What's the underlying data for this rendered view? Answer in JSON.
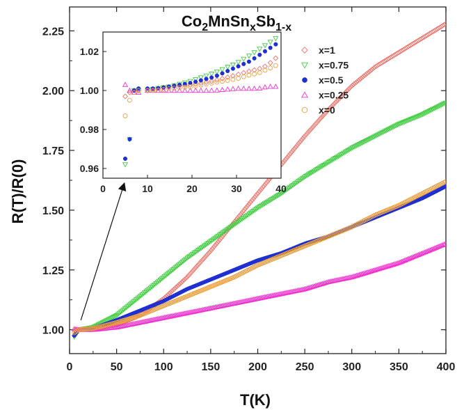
{
  "chart_data": {
    "type": "scatter",
    "title": {
      "base": "Co",
      "s1": "2",
      "mid": "MnSn",
      "s2": "x",
      "mid2": "Sb",
      "s3": "1-x"
    },
    "xlabel": "T(K)",
    "ylabel": "R(T)/R(0)",
    "xlim": [
      0,
      400
    ],
    "ylim": [
      0.9,
      2.35
    ],
    "xticks": [
      "0",
      "50",
      "100",
      "150",
      "200",
      "250",
      "300",
      "350",
      "400"
    ],
    "yticks": [
      "1.00",
      "1.25",
      "1.50",
      "1.75",
      "2.00",
      "2.25"
    ],
    "legend_position": "top-right",
    "grid": false,
    "series": [
      {
        "name": "x=1",
        "marker": "diamond-open",
        "color": "#e8736a",
        "points": [
          [
            5,
            1.0
          ],
          [
            10,
            1.0
          ],
          [
            25,
            1.003
          ],
          [
            50,
            1.02
          ],
          [
            75,
            1.06
          ],
          [
            100,
            1.13
          ],
          [
            125,
            1.22
          ],
          [
            150,
            1.33
          ],
          [
            175,
            1.45
          ],
          [
            200,
            1.57
          ],
          [
            225,
            1.69
          ],
          [
            250,
            1.81
          ],
          [
            275,
            1.92
          ],
          [
            300,
            2.02
          ],
          [
            325,
            2.1
          ],
          [
            350,
            2.16
          ],
          [
            375,
            2.22
          ],
          [
            400,
            2.28
          ]
        ]
      },
      {
        "name": "x=0.75",
        "marker": "triangle-down-open",
        "color": "#44cc44",
        "points": [
          [
            5,
            0.97
          ],
          [
            10,
            1.0
          ],
          [
            25,
            1.01
          ],
          [
            50,
            1.06
          ],
          [
            75,
            1.14
          ],
          [
            100,
            1.22
          ],
          [
            125,
            1.3
          ],
          [
            150,
            1.37
          ],
          [
            175,
            1.44
          ],
          [
            200,
            1.51
          ],
          [
            225,
            1.57
          ],
          [
            250,
            1.64
          ],
          [
            275,
            1.7
          ],
          [
            300,
            1.76
          ],
          [
            325,
            1.81
          ],
          [
            350,
            1.86
          ],
          [
            375,
            1.9
          ],
          [
            400,
            1.95
          ]
        ]
      },
      {
        "name": "x=0.5",
        "marker": "circle-filled",
        "color": "#1f2fd0",
        "points": [
          [
            5,
            0.975
          ],
          [
            10,
            1.0
          ],
          [
            25,
            1.005
          ],
          [
            50,
            1.04
          ],
          [
            75,
            1.08
          ],
          [
            100,
            1.12
          ],
          [
            125,
            1.17
          ],
          [
            150,
            1.21
          ],
          [
            175,
            1.25
          ],
          [
            200,
            1.29
          ],
          [
            225,
            1.32
          ],
          [
            250,
            1.36
          ],
          [
            275,
            1.39
          ],
          [
            300,
            1.43
          ],
          [
            325,
            1.47
          ],
          [
            350,
            1.51
          ],
          [
            375,
            1.55
          ],
          [
            400,
            1.6
          ]
        ]
      },
      {
        "name": "x=0.25",
        "marker": "triangle-up-open",
        "color": "#ee33cc",
        "points": [
          [
            5,
            1.003
          ],
          [
            10,
            1.0
          ],
          [
            25,
            1.0
          ],
          [
            50,
            1.01
          ],
          [
            75,
            1.03
          ],
          [
            100,
            1.05
          ],
          [
            125,
            1.07
          ],
          [
            150,
            1.09
          ],
          [
            175,
            1.11
          ],
          [
            200,
            1.13
          ],
          [
            225,
            1.15
          ],
          [
            250,
            1.17
          ],
          [
            275,
            1.2
          ],
          [
            300,
            1.22
          ],
          [
            325,
            1.25
          ],
          [
            350,
            1.28
          ],
          [
            375,
            1.32
          ],
          [
            400,
            1.36
          ]
        ]
      },
      {
        "name": "x=0",
        "marker": "circle-open",
        "color": "#e8a040",
        "points": [
          [
            5,
            0.987
          ],
          [
            10,
            1.0
          ],
          [
            25,
            1.005
          ],
          [
            50,
            1.03
          ],
          [
            75,
            1.06
          ],
          [
            100,
            1.1
          ],
          [
            125,
            1.14
          ],
          [
            150,
            1.18
          ],
          [
            175,
            1.22
          ],
          [
            200,
            1.27
          ],
          [
            225,
            1.31
          ],
          [
            250,
            1.35
          ],
          [
            275,
            1.39
          ],
          [
            300,
            1.43
          ],
          [
            325,
            1.48
          ],
          [
            350,
            1.52
          ],
          [
            375,
            1.57
          ],
          [
            400,
            1.62
          ]
        ]
      }
    ],
    "inset": {
      "xlim": [
        0,
        40
      ],
      "ylim": [
        0.955,
        1.03
      ],
      "xticks": [
        "0",
        "10",
        "20",
        "30",
        "40"
      ],
      "yticks": [
        "0.96",
        "0.98",
        "1.00",
        "1.02"
      ],
      "series": [
        {
          "name": "x=1",
          "points": [
            [
              5,
              0.997
            ],
            [
              6,
              0.999
            ],
            [
              7,
              1.0
            ],
            [
              8,
              1.0
            ],
            [
              10,
              1.0
            ],
            [
              12,
              1.001
            ],
            [
              15,
              1.002
            ],
            [
              20,
              1.003
            ],
            [
              25,
              1.005
            ],
            [
              30,
              1.008
            ],
            [
              33,
              1.01
            ],
            [
              35,
              1.011
            ],
            [
              37,
              1.013
            ],
            [
              39,
              1.017
            ],
            [
              40,
              1.02
            ]
          ]
        },
        {
          "name": "x=0.75",
          "points": [
            [
              5,
              0.962
            ],
            [
              6,
              0.975
            ],
            [
              7,
              1.0
            ],
            [
              8,
              1.0
            ],
            [
              10,
              1.0
            ],
            [
              12,
              1.001
            ],
            [
              15,
              1.002
            ],
            [
              20,
              1.005
            ],
            [
              25,
              1.009
            ],
            [
              30,
              1.014
            ],
            [
              33,
              1.018
            ],
            [
              35,
              1.021
            ],
            [
              37,
              1.024
            ],
            [
              39,
              1.027
            ],
            [
              40,
              1.029
            ]
          ]
        },
        {
          "name": "x=0.5",
          "points": [
            [
              5,
              0.965
            ],
            [
              6,
              0.975
            ],
            [
              7,
              1.0
            ],
            [
              8,
              1.001
            ],
            [
              10,
              1.001
            ],
            [
              12,
              1.001
            ],
            [
              15,
              1.002
            ],
            [
              20,
              1.004
            ],
            [
              25,
              1.007
            ],
            [
              30,
              1.012
            ],
            [
              33,
              1.015
            ],
            [
              35,
              1.018
            ],
            [
              37,
              1.021
            ],
            [
              39,
              1.024
            ],
            [
              40,
              1.025
            ]
          ]
        },
        {
          "name": "x=0.25",
          "points": [
            [
              5,
              1.003
            ],
            [
              6,
              1.0
            ],
            [
              7,
              0.999
            ],
            [
              8,
              0.999
            ],
            [
              10,
              1.0
            ],
            [
              12,
              1.0
            ],
            [
              15,
              1.0
            ],
            [
              20,
              1.0
            ],
            [
              25,
              1.0
            ],
            [
              30,
              1.001
            ],
            [
              33,
              1.001
            ],
            [
              35,
              1.001
            ],
            [
              37,
              1.002
            ],
            [
              39,
              1.002
            ],
            [
              40,
              1.002
            ]
          ]
        },
        {
          "name": "x=0",
          "points": [
            [
              5,
              0.987
            ],
            [
              6,
              0.995
            ],
            [
              7,
              0.999
            ],
            [
              8,
              1.0
            ],
            [
              10,
              1.0
            ],
            [
              12,
              1.0
            ],
            [
              15,
              1.001
            ],
            [
              20,
              1.002
            ],
            [
              25,
              1.004
            ],
            [
              30,
              1.006
            ],
            [
              33,
              1.008
            ],
            [
              35,
              1.009
            ],
            [
              37,
              1.011
            ],
            [
              39,
              1.013
            ],
            [
              40,
              1.014
            ]
          ]
        }
      ]
    }
  }
}
